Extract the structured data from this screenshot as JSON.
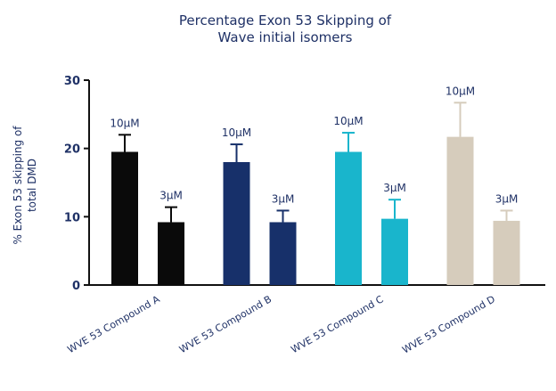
{
  "chart_data": {
    "type": "bar",
    "title_line1": "Percentage Exon 53 Skipping of",
    "title_line2": "Wave initial isomers",
    "ylabel_line1": "% Exon 53 skipping of",
    "ylabel_line2": "total DMD",
    "xlabel": "",
    "ylim": [
      0,
      30
    ],
    "yticks": [
      0,
      10,
      20,
      30
    ],
    "grid": false,
    "categories": [
      "WVE 53 Compound A",
      "WVE 53 Compound B",
      "WVE 53 Compound C",
      "WVE 53 Compound D"
    ],
    "colors": [
      "#0a0a0a",
      "#17306a",
      "#19b5cc",
      "#d6ccbc"
    ],
    "series": [
      {
        "values": [
          19.5,
          18,
          19.5,
          21.7
        ],
        "errors": [
          2.5,
          2.6,
          2.8,
          5.0
        ],
        "labels": [
          "10µM",
          "10µM",
          "10µM",
          "10µM"
        ]
      },
      {
        "values": [
          9.2,
          9.2,
          9.7,
          9.4
        ],
        "errors": [
          2.2,
          1.7,
          2.8,
          1.5
        ],
        "labels": [
          "3µM",
          "3µM",
          "3µM",
          "3µM"
        ]
      }
    ]
  }
}
